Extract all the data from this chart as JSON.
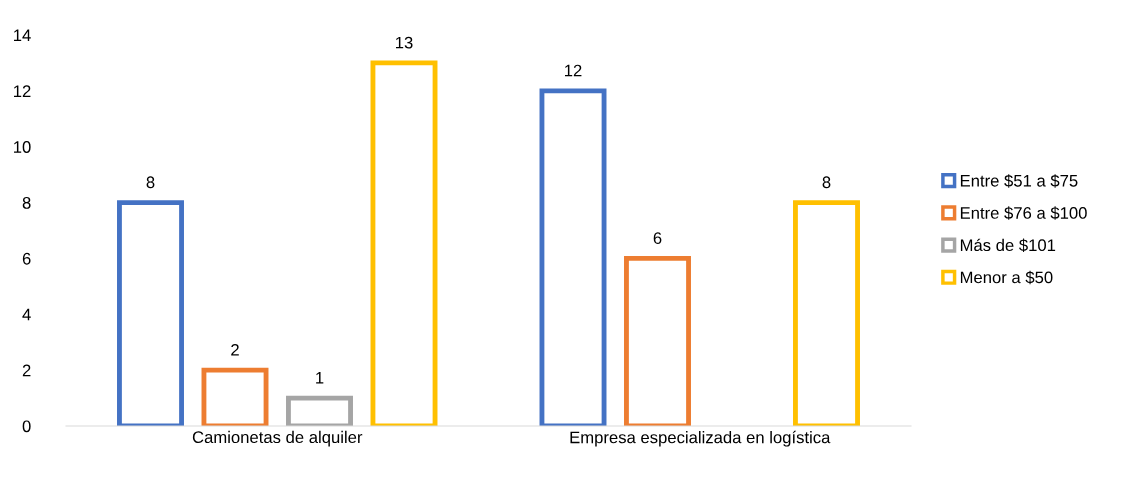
{
  "chart_data": {
    "type": "bar",
    "categories": [
      "Camionetas de alquiler",
      "Empresa especializada en logística"
    ],
    "series": [
      {
        "name": "Entre $51 a $75",
        "color": "#4472c4",
        "values": [
          8,
          12
        ]
      },
      {
        "name": "Entre $76 a $100",
        "color": "#ed7d31",
        "values": [
          2,
          6
        ]
      },
      {
        "name": "Más de $101",
        "color": "#a5a5a5",
        "values": [
          1,
          null
        ]
      },
      {
        "name": "Menor a $50",
        "color": "#ffc000",
        "values": [
          13,
          8
        ]
      }
    ],
    "ylim": [
      0,
      14
    ],
    "yticks": [
      0,
      2,
      4,
      6,
      8,
      10,
      12,
      14
    ],
    "grid": false,
    "legend": "right",
    "data_labels": true
  }
}
